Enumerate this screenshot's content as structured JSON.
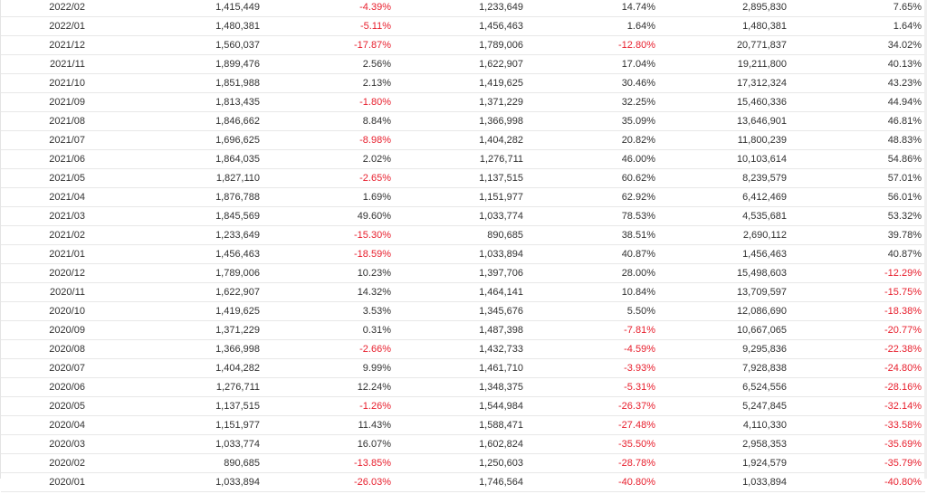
{
  "table": {
    "rows": [
      [
        "2022/02",
        "1,415,449",
        "-4.39%",
        "1,233,649",
        "14.74%",
        "2,895,830",
        "7.65%"
      ],
      [
        "2022/01",
        "1,480,381",
        "-5.11%",
        "1,456,463",
        "1.64%",
        "1,480,381",
        "1.64%"
      ],
      [
        "2021/12",
        "1,560,037",
        "-17.87%",
        "1,789,006",
        "-12.80%",
        "20,771,837",
        "34.02%"
      ],
      [
        "2021/11",
        "1,899,476",
        "2.56%",
        "1,622,907",
        "17.04%",
        "19,211,800",
        "40.13%"
      ],
      [
        "2021/10",
        "1,851,988",
        "2.13%",
        "1,419,625",
        "30.46%",
        "17,312,324",
        "43.23%"
      ],
      [
        "2021/09",
        "1,813,435",
        "-1.80%",
        "1,371,229",
        "32.25%",
        "15,460,336",
        "44.94%"
      ],
      [
        "2021/08",
        "1,846,662",
        "8.84%",
        "1,366,998",
        "35.09%",
        "13,646,901",
        "46.81%"
      ],
      [
        "2021/07",
        "1,696,625",
        "-8.98%",
        "1,404,282",
        "20.82%",
        "11,800,239",
        "48.83%"
      ],
      [
        "2021/06",
        "1,864,035",
        "2.02%",
        "1,276,711",
        "46.00%",
        "10,103,614",
        "54.86%"
      ],
      [
        "2021/05",
        "1,827,110",
        "-2.65%",
        "1,137,515",
        "60.62%",
        "8,239,579",
        "57.01%"
      ],
      [
        "2021/04",
        "1,876,788",
        "1.69%",
        "1,151,977",
        "62.92%",
        "6,412,469",
        "56.01%"
      ],
      [
        "2021/03",
        "1,845,569",
        "49.60%",
        "1,033,774",
        "78.53%",
        "4,535,681",
        "53.32%"
      ],
      [
        "2021/02",
        "1,233,649",
        "-15.30%",
        "890,685",
        "38.51%",
        "2,690,112",
        "39.78%"
      ],
      [
        "2021/01",
        "1,456,463",
        "-18.59%",
        "1,033,894",
        "40.87%",
        "1,456,463",
        "40.87%"
      ],
      [
        "2020/12",
        "1,789,006",
        "10.23%",
        "1,397,706",
        "28.00%",
        "15,498,603",
        "-12.29%"
      ],
      [
        "2020/11",
        "1,622,907",
        "14.32%",
        "1,464,141",
        "10.84%",
        "13,709,597",
        "-15.75%"
      ],
      [
        "2020/10",
        "1,419,625",
        "3.53%",
        "1,345,676",
        "5.50%",
        "12,086,690",
        "-18.38%"
      ],
      [
        "2020/09",
        "1,371,229",
        "0.31%",
        "1,487,398",
        "-7.81%",
        "10,667,065",
        "-20.77%"
      ],
      [
        "2020/08",
        "1,366,998",
        "-2.66%",
        "1,432,733",
        "-4.59%",
        "9,295,836",
        "-22.38%"
      ],
      [
        "2020/07",
        "1,404,282",
        "9.99%",
        "1,461,710",
        "-3.93%",
        "7,928,838",
        "-24.80%"
      ],
      [
        "2020/06",
        "1,276,711",
        "12.24%",
        "1,348,375",
        "-5.31%",
        "6,524,556",
        "-28.16%"
      ],
      [
        "2020/05",
        "1,137,515",
        "-1.26%",
        "1,544,984",
        "-26.37%",
        "5,247,845",
        "-32.14%"
      ],
      [
        "2020/04",
        "1,151,977",
        "11.43%",
        "1,588,471",
        "-27.48%",
        "4,110,330",
        "-33.58%"
      ],
      [
        "2020/03",
        "1,033,774",
        "16.07%",
        "1,602,824",
        "-35.50%",
        "2,958,353",
        "-35.69%"
      ],
      [
        "2020/02",
        "890,685",
        "-13.85%",
        "1,250,603",
        "-28.78%",
        "1,924,579",
        "-35.79%"
      ],
      [
        "2020/01",
        "1,033,894",
        "-26.03%",
        "1,746,564",
        "-40.80%",
        "1,033,894",
        "-40.80%"
      ]
    ]
  },
  "colors": {
    "negative": "#e8202e",
    "text": "#333333",
    "row_border": "#e8e8e8"
  }
}
